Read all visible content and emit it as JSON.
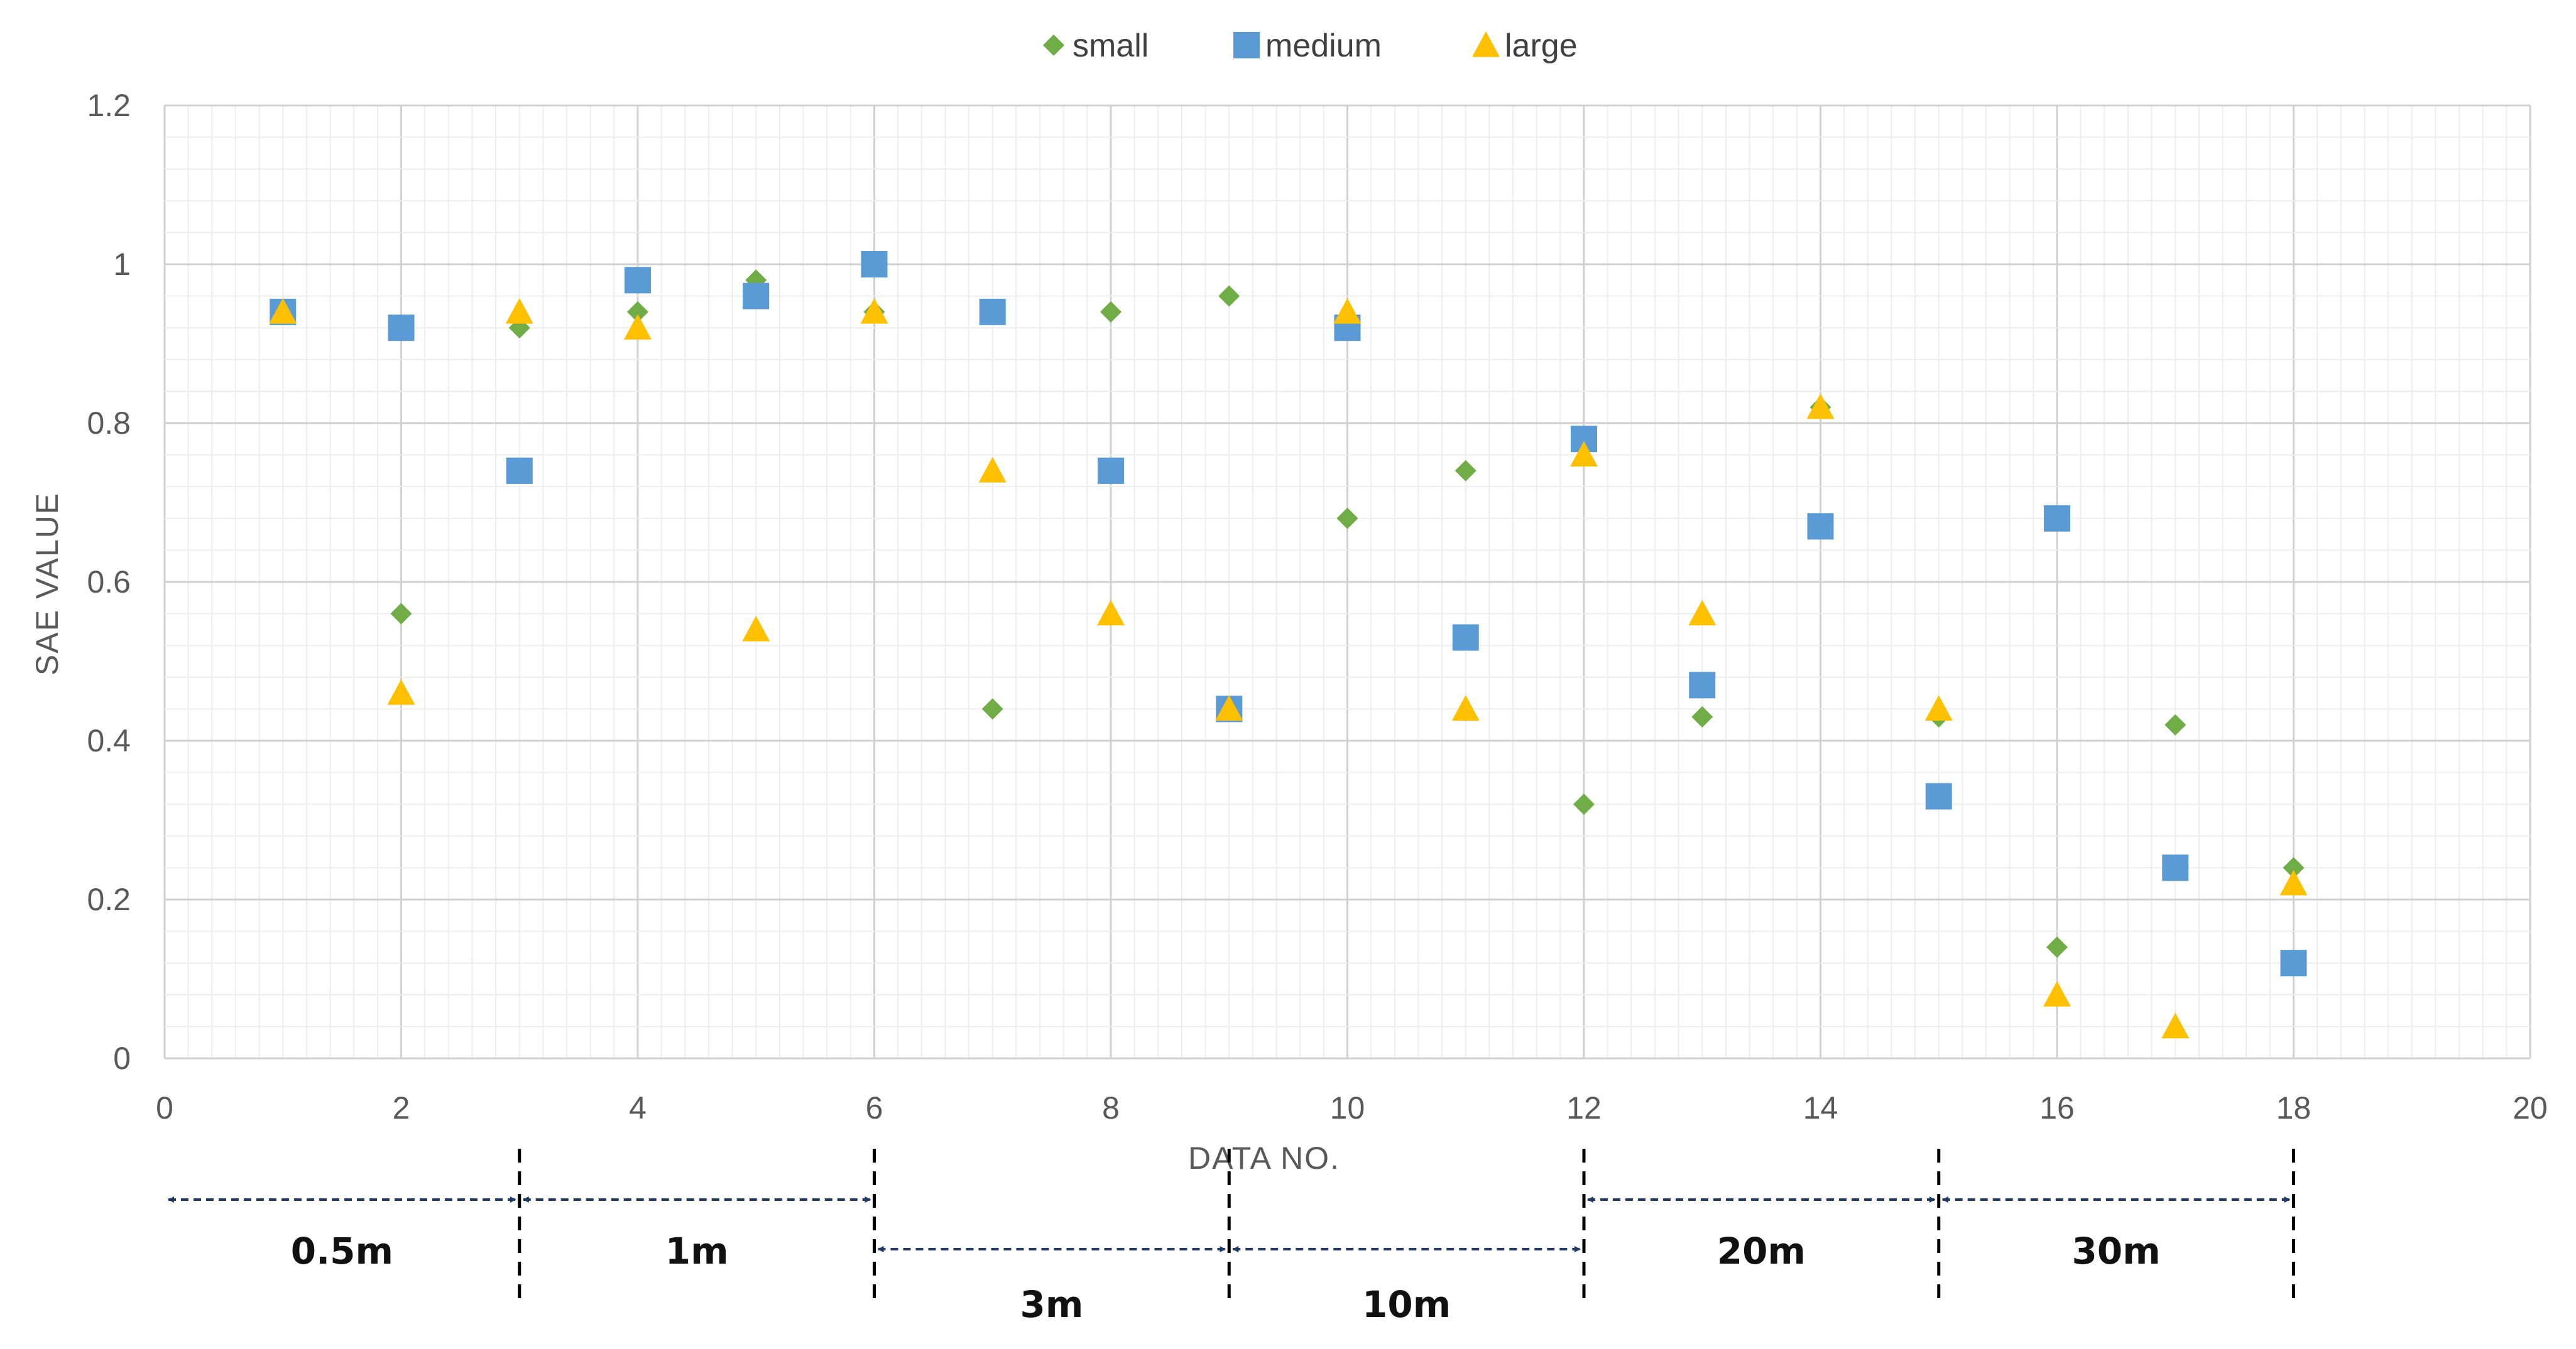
{
  "chart_data": {
    "type": "scatter",
    "title": "",
    "xlabel": "DATA NO.",
    "ylabel": "SAE VALUE",
    "xlim": [
      0,
      20
    ],
    "ylim": [
      0,
      1.2
    ],
    "x_ticks": [
      "0",
      "2",
      "4",
      "6",
      "8",
      "10",
      "12",
      "14",
      "16",
      "18",
      "20"
    ],
    "y_ticks": [
      "0",
      "0.2",
      "0.4",
      "0.6",
      "0.8",
      "1",
      "1.2"
    ],
    "grid": true,
    "legend_position": "top",
    "series": [
      {
        "name": "small",
        "marker": "diamond",
        "color": "#70AD47",
        "x": [
          1,
          2,
          3,
          4,
          5,
          6,
          7,
          8,
          9,
          10,
          11,
          12,
          13,
          14,
          15,
          16,
          17,
          18
        ],
        "y": [
          0.94,
          0.56,
          0.92,
          0.94,
          0.98,
          0.94,
          0.44,
          0.94,
          0.96,
          0.68,
          0.74,
          0.32,
          0.43,
          0.82,
          0.43,
          0.14,
          0.42,
          0.24
        ]
      },
      {
        "name": "medium",
        "marker": "square",
        "color": "#5B9BD5",
        "x": [
          1,
          2,
          3,
          4,
          5,
          6,
          7,
          8,
          9,
          10,
          11,
          12,
          13,
          14,
          15,
          16,
          17,
          18
        ],
        "y": [
          0.94,
          0.92,
          0.74,
          0.98,
          0.96,
          1.0,
          0.94,
          0.74,
          0.44,
          0.92,
          0.53,
          0.78,
          0.47,
          0.67,
          0.33,
          0.68,
          0.24,
          0.12
        ]
      },
      {
        "name": "large",
        "marker": "triangle",
        "color": "#FFC000",
        "x": [
          1,
          2,
          3,
          4,
          5,
          6,
          7,
          8,
          9,
          10,
          11,
          12,
          13,
          14,
          15,
          16,
          17,
          18
        ],
        "y": [
          0.94,
          0.46,
          0.94,
          0.92,
          0.54,
          0.94,
          0.74,
          0.56,
          0.44,
          0.94,
          0.44,
          0.76,
          0.56,
          0.82,
          0.44,
          0.08,
          0.04,
          0.22
        ]
      }
    ],
    "distance_groups": [
      {
        "label": "0.5m",
        "start": 0,
        "end": 3,
        "row": 1
      },
      {
        "label": "1m",
        "start": 3,
        "end": 6,
        "row": 1
      },
      {
        "label": "3m",
        "start": 6,
        "end": 9,
        "row": 2
      },
      {
        "label": "10m",
        "start": 9,
        "end": 12,
        "row": 2
      },
      {
        "label": "20m",
        "start": 12,
        "end": 15,
        "row": 1
      },
      {
        "label": "30m",
        "start": 15,
        "end": 18,
        "row": 1
      }
    ]
  }
}
